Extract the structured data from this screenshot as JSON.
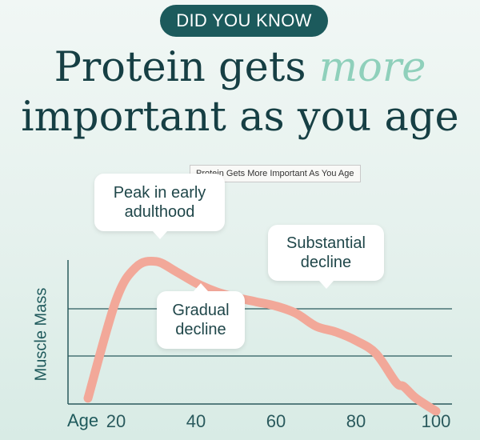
{
  "badge": "DID YOU KNOW",
  "headline": {
    "line1_a": "Protein gets ",
    "line1_accent": "more",
    "line2": "important as you age"
  },
  "tooltip": "Protein Gets More Important As You Age",
  "colors": {
    "background": "#e5f1ed",
    "badge": "#1c5a5c",
    "headline": "#163f44",
    "accent": "#8fd0bb",
    "curve": "#f2a899",
    "axis": "#2a5a5d"
  },
  "chart_data": {
    "type": "line",
    "ylabel": "Muscle Mass",
    "xlabel": "Age",
    "xticks": [
      20,
      40,
      60,
      80,
      100
    ],
    "xlim": [
      8,
      104
    ],
    "ylim": [
      0,
      100
    ],
    "grid": true,
    "series": [
      {
        "values_x": [
          13,
          20,
          25,
          30,
          35,
          40,
          45,
          50,
          55,
          60,
          65,
          70,
          75,
          80,
          85,
          90,
          92,
          95,
          100
        ],
        "values_y": [
          4,
          72,
          95,
          99,
          92,
          84,
          78,
          74,
          71,
          68,
          63,
          54,
          50,
          44,
          35,
          15,
          12,
          4,
          -5
        ]
      }
    ],
    "annotations": [
      {
        "text": "Peak in early adulthood",
        "line1": "Peak in early",
        "line2": "adulthood"
      },
      {
        "text": "Gradual decline",
        "line1": "Gradual",
        "line2": "decline"
      },
      {
        "text": "Substantial decline",
        "line1": "Substantial",
        "line2": "decline"
      }
    ]
  }
}
